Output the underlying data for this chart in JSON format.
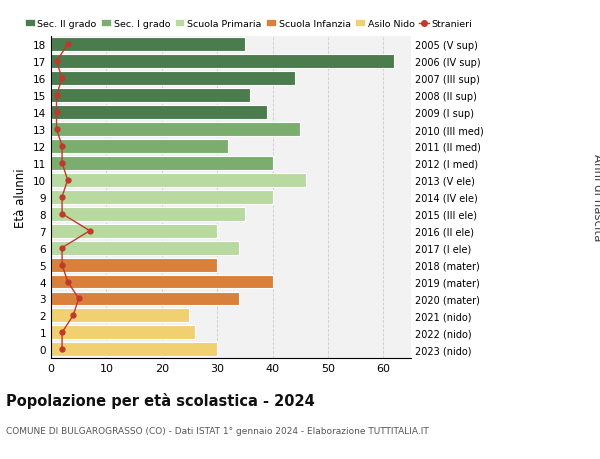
{
  "ages": [
    18,
    17,
    16,
    15,
    14,
    13,
    12,
    11,
    10,
    9,
    8,
    7,
    6,
    5,
    4,
    3,
    2,
    1,
    0
  ],
  "labels_right": [
    "2005 (V sup)",
    "2006 (IV sup)",
    "2007 (III sup)",
    "2008 (II sup)",
    "2009 (I sup)",
    "2010 (III med)",
    "2011 (II med)",
    "2012 (I med)",
    "2013 (V ele)",
    "2014 (IV ele)",
    "2015 (III ele)",
    "2016 (II ele)",
    "2017 (I ele)",
    "2018 (mater)",
    "2019 (mater)",
    "2020 (mater)",
    "2021 (nido)",
    "2022 (nido)",
    "2023 (nido)"
  ],
  "bar_values": [
    35,
    62,
    44,
    36,
    39,
    45,
    32,
    40,
    46,
    40,
    35,
    30,
    34,
    30,
    40,
    34,
    25,
    26,
    30
  ],
  "bar_colors": [
    "#4a7c4e",
    "#4a7c4e",
    "#4a7c4e",
    "#4a7c4e",
    "#4a7c4e",
    "#7aad6e",
    "#7aad6e",
    "#7aad6e",
    "#b8d9a0",
    "#b8d9a0",
    "#b8d9a0",
    "#b8d9a0",
    "#b8d9a0",
    "#d9803a",
    "#d9803a",
    "#d9803a",
    "#f0d070",
    "#f0d070",
    "#f0d070"
  ],
  "stranieri_values": [
    3,
    1,
    2,
    1,
    1,
    1,
    2,
    2,
    3,
    2,
    2,
    7,
    2,
    2,
    3,
    5,
    4,
    2,
    2
  ],
  "legend_labels": [
    "Sec. II grado",
    "Sec. I grado",
    "Scuola Primaria",
    "Scuola Infanzia",
    "Asilo Nido",
    "Stranieri"
  ],
  "legend_colors": [
    "#4a7c4e",
    "#7aad6e",
    "#b8d9a0",
    "#d9803a",
    "#f0d070",
    "#c0392b"
  ],
  "ylabel": "Età alunni",
  "right_ylabel": "Anni di nascita",
  "title": "Popolazione per età scolastica - 2024",
  "subtitle": "COMUNE DI BULGAROGRASSO (CO) - Dati ISTAT 1° gennaio 2024 - Elaborazione TUTTITALIA.IT",
  "xlim": [
    0,
    65
  ],
  "grid_color": "#cccccc",
  "bg_color": "#ffffff",
  "bar_bg_color": "#f2f2f2"
}
